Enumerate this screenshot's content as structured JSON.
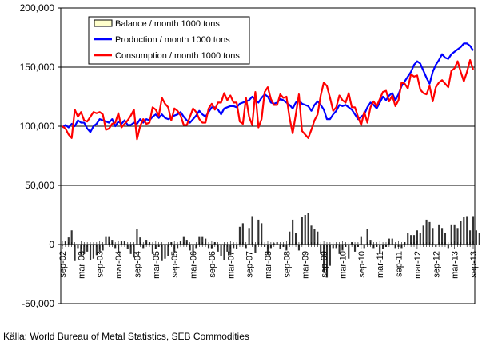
{
  "chart_data": {
    "type": "bar+line",
    "source": "Källa: World Bureau of Metal Statistics, SEB Commodities",
    "ylim": [
      -50000,
      200000
    ],
    "yticks": [
      -50000,
      0,
      50000,
      100000,
      150000,
      200000
    ],
    "ytick_labels": [
      "-50,000",
      "0",
      "50,000",
      "100,000",
      "150,000",
      "200,000"
    ],
    "xtick_labels": [
      "sep-02",
      "mar-03",
      "sep-03",
      "mar-04",
      "sep-04",
      "mar-05",
      "sep-05",
      "mar-06",
      "sep-06",
      "mar-07",
      "sep-07",
      "mar-08",
      "sep-08",
      "mar-09",
      "sep-09",
      "mar-10",
      "sep-10",
      "mar-11",
      "sep-11",
      "mar-12",
      "sep-12",
      "mar-13",
      "sep-13"
    ],
    "months": 133,
    "legend": [
      "Balance / month 1000 tons",
      "Production / month 1000 tons",
      "Consumption / month 1000 tons"
    ],
    "colors": {
      "balance": "#333333",
      "balance_legend": "#ffffcc",
      "production": "#0000ff",
      "consumption": "#ff0000"
    },
    "series": [
      {
        "name": "Balance / month 1000 tons",
        "kind": "bar",
        "values": [
          -1000,
          3000,
          6000,
          12000,
          -14000,
          -3000,
          -10000,
          -8000,
          -6000,
          -13000,
          -12000,
          -9000,
          -6000,
          -5000,
          7000,
          7000,
          4000,
          -3000,
          -7000,
          3000,
          3000,
          -4000,
          -8000,
          -11000,
          13000,
          6000,
          -3000,
          4000,
          2000,
          -8000,
          -4000,
          -2000,
          -14000,
          -12000,
          -10000,
          2000,
          -6000,
          -3000,
          3000,
          7000,
          4000,
          -5000,
          -9000,
          -3000,
          7000,
          7000,
          5000,
          -3000,
          -3000,
          2000,
          -6000,
          -10000,
          -13000,
          -6000,
          -9000,
          -3000,
          -4000,
          15000,
          18000,
          -3000,
          14000,
          24000,
          -7000,
          21000,
          18000,
          -2000,
          -8000,
          -3000,
          1000,
          2000,
          -4000,
          -2000,
          -5000,
          11000,
          21000,
          10000,
          -5000,
          23000,
          25000,
          27000,
          16000,
          13000,
          11000,
          -8000,
          -23000,
          -28000,
          -18000,
          -3000,
          -3000,
          -8000,
          -5000,
          -2000,
          -12000,
          2000,
          -6000,
          -2000,
          7000,
          -3000,
          13000,
          4000,
          -3000,
          -2000,
          -8000,
          -4000,
          -2000,
          5000,
          5000,
          -3000,
          -2000,
          -3000,
          2000,
          10000,
          8000,
          8000,
          12000,
          10000,
          16000,
          21000,
          19000,
          14000,
          -2000,
          17000,
          14000,
          10000,
          -3000,
          17000,
          17000,
          14000,
          20000,
          23000,
          24000,
          12000,
          24000,
          12000,
          10000
        ]
      },
      {
        "name": "Production / month 1000 tons",
        "kind": "line",
        "values": [
          99000,
          101000,
          99000,
          102000,
          100000,
          105000,
          103000,
          103000,
          98000,
          95000,
          100000,
          102000,
          106000,
          105000,
          104000,
          103000,
          106000,
          100000,
          104000,
          102000,
          105000,
          101000,
          101000,
          103000,
          102000,
          106000,
          103000,
          106000,
          105000,
          108000,
          110000,
          107000,
          110000,
          107000,
          106000,
          107000,
          109000,
          110000,
          112000,
          108000,
          105000,
          103000,
          106000,
          109000,
          113000,
          110000,
          108000,
          112000,
          116000,
          116000,
          114000,
          110000,
          115000,
          116000,
          117000,
          117000,
          116000,
          119000,
          120000,
          121000,
          122000,
          125000,
          122000,
          120000,
          124000,
          127000,
          125000,
          120000,
          119000,
          120000,
          123000,
          122000,
          120000,
          118000,
          115000,
          120000,
          122000,
          119000,
          118000,
          117000,
          113000,
          118000,
          121000,
          118000,
          114000,
          106000,
          106000,
          110000,
          113000,
          118000,
          117000,
          118000,
          116000,
          114000,
          110000,
          106000,
          108000,
          110000,
          116000,
          120000,
          118000,
          115000,
          120000,
          125000,
          122000,
          126000,
          128000,
          122000,
          127000,
          134000,
          138000,
          142000,
          146000,
          152000,
          155000,
          153000,
          147000,
          141000,
          136000,
          146000,
          152000,
          156000,
          161000,
          158000,
          157000,
          161000,
          163000,
          165000,
          167000,
          170000,
          170000,
          168000,
          164000
        ]
      },
      {
        "name": "Consumption / month 1000 tons",
        "kind": "line",
        "values": [
          100000,
          98000,
          93000,
          90000,
          114000,
          108000,
          112000,
          105000,
          104000,
          108000,
          112000,
          111000,
          112000,
          110000,
          97000,
          98000,
          102000,
          103000,
          111000,
          99000,
          102000,
          105000,
          109000,
          114000,
          89000,
          100000,
          106000,
          102000,
          103000,
          116000,
          114000,
          109000,
          124000,
          119000,
          116000,
          105000,
          115000,
          113000,
          109000,
          101000,
          101000,
          108000,
          115000,
          112000,
          106000,
          103000,
          103000,
          115000,
          119000,
          114000,
          120000,
          120000,
          128000,
          122000,
          126000,
          120000,
          120000,
          104000,
          102000,
          124000,
          108000,
          101000,
          129000,
          99000,
          106000,
          129000,
          133000,
          123000,
          118000,
          118000,
          127000,
          124000,
          125000,
          107000,
          94000,
          110000,
          127000,
          96000,
          93000,
          90000,
          97000,
          105000,
          110000,
          126000,
          137000,
          134000,
          124000,
          113000,
          116000,
          126000,
          122000,
          120000,
          128000,
          116000,
          116000,
          108000,
          101000,
          112000,
          103000,
          116000,
          121000,
          117000,
          123000,
          129000,
          130000,
          121000,
          126000,
          117000,
          122000,
          137000,
          136000,
          132000,
          144000,
          142000,
          143000,
          131000,
          128000,
          127000,
          134000,
          121000,
          133000,
          137000,
          139000,
          136000,
          133000,
          147000,
          149000,
          155000,
          146000,
          138000,
          146000,
          156000,
          148000
        ]
      }
    ]
  }
}
